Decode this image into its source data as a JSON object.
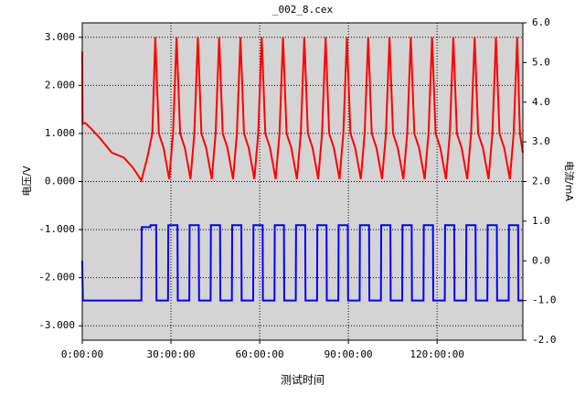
{
  "chart_data": {
    "type": "line",
    "title": "_002_8.cex",
    "x_label": "测试时间",
    "y_label": "电压/V",
    "y2_label": "电流/mA",
    "grid": true,
    "background": "#d4d4d4",
    "xlim": [
      0,
      149
    ],
    "xticks": [
      {
        "value": 0,
        "label": "0:00:00"
      },
      {
        "value": 30,
        "label": "30:00:00"
      },
      {
        "value": 60,
        "label": "60:00:00"
      },
      {
        "value": 90,
        "label": "90:00:00"
      },
      {
        "value": 120,
        "label": "120:00:00"
      }
    ],
    "ylim": [
      -3.3,
      3.3
    ],
    "yticks": [
      {
        "value": 3,
        "label": "3.000"
      },
      {
        "value": 2,
        "label": "2.000"
      },
      {
        "value": 1,
        "label": "1.000"
      },
      {
        "value": 0,
        "label": "0.000"
      },
      {
        "value": -1,
        "label": "-1.000"
      },
      {
        "value": -2,
        "label": "-2.000"
      },
      {
        "value": -3,
        "label": "-3.000"
      }
    ],
    "y2lim": [
      -2,
      6
    ],
    "y2ticks": [
      {
        "value": 6,
        "label": "6.0"
      },
      {
        "value": 5,
        "label": "5.0"
      },
      {
        "value": 4,
        "label": "4.0"
      },
      {
        "value": 3,
        "label": "3.0"
      },
      {
        "value": 2,
        "label": "2.0"
      },
      {
        "value": 1,
        "label": "1.0"
      },
      {
        "value": 0,
        "label": "0.0"
      },
      {
        "value": -1,
        "label": "-1.0"
      },
      {
        "value": -2,
        "label": "-2.0"
      }
    ],
    "series": [
      {
        "color": "#ff0000",
        "x": [
          0,
          0.1,
          1,
          3,
          6,
          10,
          14,
          17,
          20,
          22,
          23.7,
          24.7,
          25.9,
          27.5,
          29.4,
          30.7,
          31.9,
          33.1,
          34.7,
          36.6,
          37.9,
          39.1,
          40.3,
          41.9,
          43.8,
          45.1,
          46.3,
          47.5,
          49.1,
          51.0,
          52.3,
          53.5,
          54.7,
          56.3,
          58.2,
          59.5,
          60.7,
          61.9,
          63.5,
          65.4,
          66.7,
          67.9,
          69.1,
          70.7,
          72.6,
          73.9,
          75.1,
          76.3,
          77.9,
          79.8,
          81.1,
          82.3,
          83.5,
          85.1,
          87.0,
          88.3,
          89.5,
          90.7,
          92.3,
          94.2,
          95.5,
          96.7,
          97.9,
          99.5,
          101.4,
          102.7,
          103.9,
          105.1,
          106.7,
          108.6,
          109.9,
          111.1,
          112.3,
          113.9,
          115.8,
          117.1,
          118.3,
          119.5,
          121.1,
          123.0,
          124.3,
          125.5,
          126.7,
          128.3,
          130.2,
          131.5,
          132.7,
          133.9,
          135.5,
          137.4,
          138.7,
          139.9,
          141.1,
          142.7,
          144.6,
          145.9,
          147.1,
          148.0,
          149
        ],
        "values": [
          2.7,
          1.2,
          1.22,
          1.1,
          0.9,
          0.6,
          0.5,
          0.3,
          0.02,
          0.5,
          1.0,
          3.0,
          1.0,
          0.7,
          0.05,
          1.0,
          3.0,
          1.0,
          0.7,
          0.05,
          1.0,
          3.0,
          1.0,
          0.7,
          0.05,
          1.0,
          3.0,
          1.0,
          0.7,
          0.05,
          1.0,
          3.0,
          1.0,
          0.7,
          0.05,
          1.0,
          3.0,
          1.0,
          0.7,
          0.05,
          1.0,
          3.0,
          1.0,
          0.7,
          0.05,
          1.0,
          3.0,
          1.0,
          0.7,
          0.05,
          1.0,
          3.0,
          1.0,
          0.7,
          0.05,
          1.0,
          3.0,
          1.0,
          0.7,
          0.05,
          1.0,
          3.0,
          1.0,
          0.7,
          0.05,
          1.0,
          3.0,
          1.0,
          0.7,
          0.05,
          1.0,
          3.0,
          1.0,
          0.7,
          0.05,
          1.0,
          3.0,
          1.0,
          0.7,
          0.05,
          1.0,
          3.0,
          1.0,
          0.7,
          0.05,
          1.0,
          3.0,
          1.0,
          0.7,
          0.05,
          1.0,
          3.0,
          1.0,
          0.7,
          0.05,
          1.0,
          3.0,
          1.0,
          0.6
        ]
      },
      {
        "color": "#0000ff",
        "axis": "y2",
        "x": [
          0,
          0.2,
          20,
          20.1,
          23,
          23.1,
          25.0,
          25.1,
          29.0,
          29.1,
          32.2,
          32.3,
          36.2,
          36.3,
          39.4,
          39.5,
          43.4,
          43.5,
          46.6,
          46.7,
          50.6,
          50.7,
          53.8,
          53.9,
          57.8,
          57.9,
          61.0,
          61.1,
          65.0,
          65.1,
          68.2,
          68.3,
          72.2,
          72.3,
          75.4,
          75.5,
          79.4,
          79.5,
          82.6,
          82.7,
          86.6,
          86.7,
          89.8,
          89.9,
          93.8,
          93.9,
          97.0,
          97.1,
          101.0,
          101.1,
          104.2,
          104.3,
          108.2,
          108.3,
          111.4,
          111.5,
          115.4,
          115.5,
          118.6,
          118.7,
          122.6,
          122.7,
          125.8,
          125.9,
          129.8,
          129.9,
          133.0,
          133.1,
          137.0,
          137.1,
          140.2,
          140.3,
          144.2,
          144.3,
          147.4,
          147.5,
          149
        ],
        "values": [
          0.0,
          -1.0,
          -1.0,
          0.85,
          0.85,
          0.9,
          0.9,
          -1.0,
          -1.0,
          0.9,
          0.9,
          -1.0,
          -1.0,
          0.9,
          0.9,
          -1.0,
          -1.0,
          0.9,
          0.9,
          -1.0,
          -1.0,
          0.9,
          0.9,
          -1.0,
          -1.0,
          0.9,
          0.9,
          -1.0,
          -1.0,
          0.9,
          0.9,
          -1.0,
          -1.0,
          0.9,
          0.9,
          -1.0,
          -1.0,
          0.9,
          0.9,
          -1.0,
          -1.0,
          0.9,
          0.9,
          -1.0,
          -1.0,
          0.9,
          0.9,
          -1.0,
          -1.0,
          0.9,
          0.9,
          -1.0,
          -1.0,
          0.9,
          0.9,
          -1.0,
          -1.0,
          0.9,
          0.9,
          -1.0,
          -1.0,
          0.9,
          0.9,
          -1.0,
          -1.0,
          0.9,
          0.9,
          -1.0,
          -1.0,
          0.9,
          0.9,
          -1.0,
          -1.0,
          0.9,
          0.9,
          -1.0,
          -1.0
        ]
      }
    ]
  }
}
